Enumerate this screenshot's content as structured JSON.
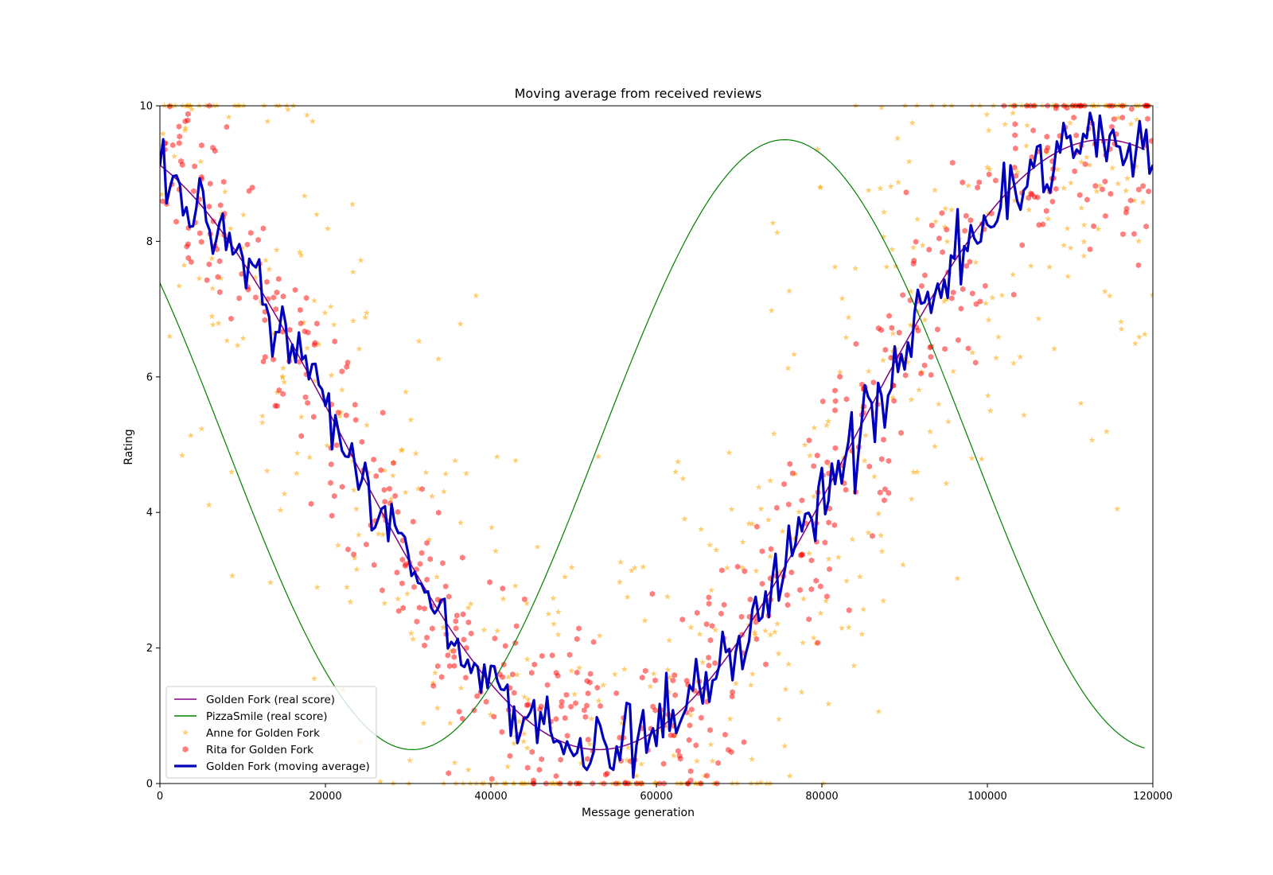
{
  "chart_data": {
    "type": "scatter",
    "title": "Moving average from received reviews",
    "xlabel": "Message generation",
    "ylabel": "Rating",
    "xlim": [
      0,
      120000
    ],
    "ylim": [
      0,
      10
    ],
    "xticks": [
      0,
      20000,
      40000,
      60000,
      80000,
      100000,
      120000
    ],
    "yticks": [
      0,
      2,
      4,
      6,
      8,
      10
    ],
    "grid": false,
    "legend_position": "lower-left",
    "series": [
      {
        "name": "Golden Fork (real score)",
        "kind": "line",
        "color": "#800080",
        "formula": "5 + 4.5*cos(2*pi*(x-114000)/122000)",
        "x_range": [
          0,
          119000
        ]
      },
      {
        "name": "PizzaSmile (real score)",
        "kind": "line",
        "color": "#008000",
        "formula": "5 + 4.5*cos(2*pi*(x-75500)/90000)",
        "x_range": [
          0,
          119000
        ]
      },
      {
        "name": "Anne for Golden Fork",
        "kind": "scatter",
        "marker": "star",
        "color": "#FFA500",
        "noise_sd": 2.3,
        "n_points_approx": 600
      },
      {
        "name": "Rita for Golden Fork",
        "kind": "scatter",
        "marker": "hexagon",
        "color": "#FF0000",
        "noise_sd": 0.8,
        "n_points_approx": 600
      },
      {
        "name": "Golden Fork (moving average)",
        "kind": "line",
        "color": "#0000BB",
        "noise_sd": 0.28,
        "x_range": [
          0,
          120000
        ]
      }
    ]
  }
}
